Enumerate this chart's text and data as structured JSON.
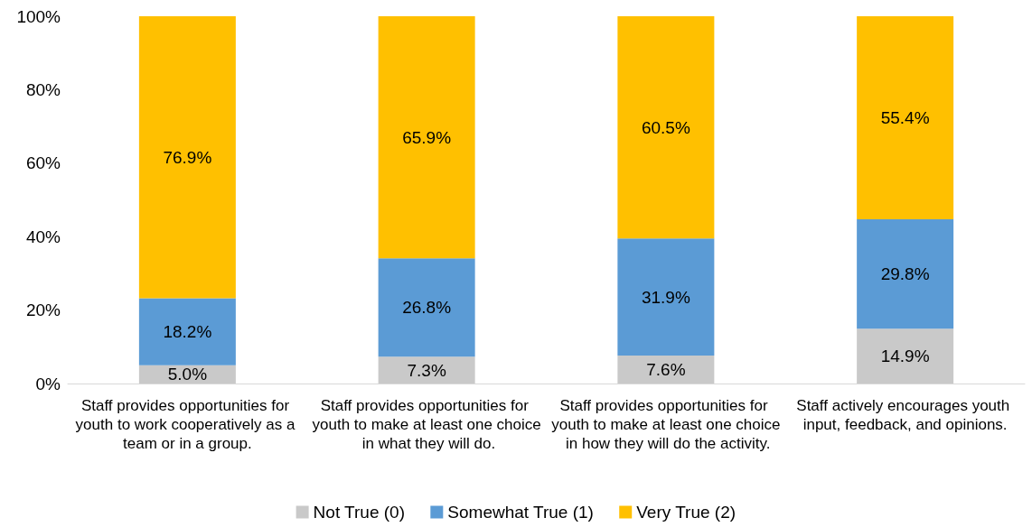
{
  "chart_data": {
    "type": "bar",
    "stacked": true,
    "categories": [
      "Staff provides opportunities for youth to work cooperatively as a team or in a group.",
      "Staff provides opportunities for youth to make at least one choice in what they will do.",
      "Staff provides opportunities for youth to make at least one choice in how they will do the activity.",
      "Staff actively encourages youth input, feedback, and opinions."
    ],
    "series": [
      {
        "name": "Not True (0)",
        "color": "#c9c9c9",
        "values": [
          5.0,
          7.3,
          7.6,
          14.9
        ],
        "value_labels": [
          "5.0%",
          "7.3%",
          "7.6%",
          "14.9%"
        ]
      },
      {
        "name": "Somewhat True (1)",
        "color": "#5b9bd5",
        "values": [
          18.2,
          26.8,
          31.9,
          29.8
        ],
        "value_labels": [
          "18.2%",
          "26.8%",
          "31.9%",
          "29.8%"
        ]
      },
      {
        "name": "Very True (2)",
        "color": "#ffc000",
        "values": [
          76.9,
          65.9,
          60.5,
          55.4
        ],
        "value_labels": [
          "76.9%",
          "65.9%",
          "60.5%",
          "55.4%"
        ]
      }
    ],
    "ylim": [
      0,
      100
    ],
    "yticks": [
      {
        "value": 0,
        "label": "0%"
      },
      {
        "value": 20,
        "label": "20%"
      },
      {
        "value": 40,
        "label": "40%"
      },
      {
        "value": 60,
        "label": "60%"
      },
      {
        "value": 80,
        "label": "80%"
      },
      {
        "value": 100,
        "label": "100%"
      }
    ],
    "grid": false,
    "legend": "bottom"
  }
}
